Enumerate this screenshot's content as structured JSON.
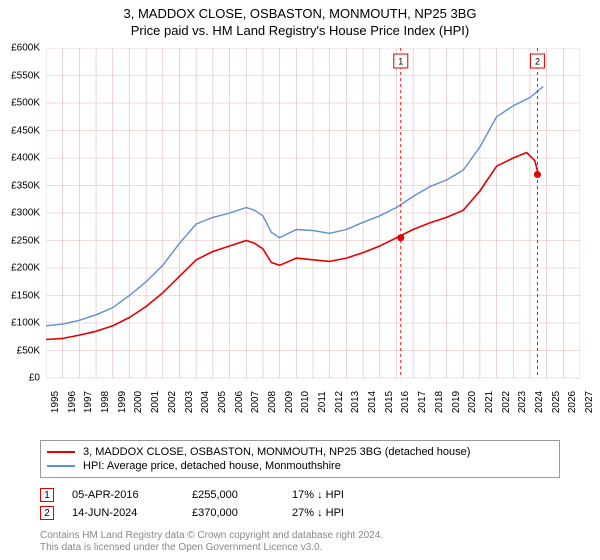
{
  "title": "3, MADDOX CLOSE, OSBASTON, MONMOUTH, NP25 3BG",
  "subtitle": "Price paid vs. HM Land Registry's House Price Index (HPI)",
  "chart": {
    "type": "line",
    "background_color": "#ffffff",
    "grid_color": "#e5b8b8",
    "grid_color_minor": "#f0dcdc",
    "title_fontsize": 13,
    "label_fontsize": 10,
    "x": {
      "min": 1995,
      "max": 2027,
      "ticks": [
        1995,
        1996,
        1997,
        1998,
        1999,
        2000,
        2001,
        2002,
        2003,
        2004,
        2005,
        2006,
        2007,
        2008,
        2009,
        2010,
        2011,
        2012,
        2013,
        2014,
        2015,
        2016,
        2017,
        2018,
        2019,
        2020,
        2021,
        2022,
        2023,
        2024,
        2025,
        2026,
        2027
      ]
    },
    "y": {
      "min": 0,
      "max": 600000,
      "tick_step": 50000,
      "tick_labels": [
        "£0",
        "£50K",
        "£100K",
        "£150K",
        "£200K",
        "£250K",
        "£300K",
        "£350K",
        "£400K",
        "£450K",
        "£500K",
        "£550K",
        "£600K"
      ]
    },
    "series": [
      {
        "id": "price_paid",
        "label": "3, MADDOX CLOSE, OSBASTON, MONMOUTH, NP25 3BG (detached house)",
        "color": "#e30000",
        "line_width": 1.6,
        "data": [
          [
            1995,
            70000
          ],
          [
            1996,
            72000
          ],
          [
            1997,
            78000
          ],
          [
            1998,
            85000
          ],
          [
            1999,
            95000
          ],
          [
            2000,
            110000
          ],
          [
            2001,
            130000
          ],
          [
            2002,
            155000
          ],
          [
            2003,
            185000
          ],
          [
            2004,
            215000
          ],
          [
            2005,
            230000
          ],
          [
            2006,
            240000
          ],
          [
            2007,
            250000
          ],
          [
            2007.5,
            245000
          ],
          [
            2008,
            235000
          ],
          [
            2008.5,
            210000
          ],
          [
            2009,
            205000
          ],
          [
            2010,
            218000
          ],
          [
            2011,
            215000
          ],
          [
            2012,
            212000
          ],
          [
            2013,
            218000
          ],
          [
            2014,
            228000
          ],
          [
            2015,
            240000
          ],
          [
            2016,
            255000
          ],
          [
            2017,
            270000
          ],
          [
            2018,
            282000
          ],
          [
            2019,
            292000
          ],
          [
            2020,
            305000
          ],
          [
            2021,
            340000
          ],
          [
            2022,
            385000
          ],
          [
            2023,
            400000
          ],
          [
            2023.8,
            410000
          ],
          [
            2024.3,
            395000
          ],
          [
            2024.5,
            370000
          ]
        ]
      },
      {
        "id": "hpi",
        "label": "HPI: Average price, detached house, Monmouthshire",
        "color": "#5b8fd6",
        "line_width": 1.4,
        "data": [
          [
            1995,
            95000
          ],
          [
            1996,
            98000
          ],
          [
            1997,
            105000
          ],
          [
            1998,
            115000
          ],
          [
            1999,
            128000
          ],
          [
            2000,
            150000
          ],
          [
            2001,
            175000
          ],
          [
            2002,
            205000
          ],
          [
            2003,
            245000
          ],
          [
            2004,
            280000
          ],
          [
            2005,
            292000
          ],
          [
            2006,
            300000
          ],
          [
            2007,
            310000
          ],
          [
            2007.5,
            305000
          ],
          [
            2008,
            295000
          ],
          [
            2008.5,
            265000
          ],
          [
            2009,
            255000
          ],
          [
            2010,
            270000
          ],
          [
            2011,
            268000
          ],
          [
            2012,
            263000
          ],
          [
            2013,
            270000
          ],
          [
            2014,
            283000
          ],
          [
            2015,
            295000
          ],
          [
            2016,
            310000
          ],
          [
            2017,
            330000
          ],
          [
            2018,
            348000
          ],
          [
            2019,
            360000
          ],
          [
            2020,
            378000
          ],
          [
            2021,
            420000
          ],
          [
            2022,
            475000
          ],
          [
            2023,
            495000
          ],
          [
            2024,
            510000
          ],
          [
            2024.8,
            530000
          ]
        ]
      }
    ],
    "markers": [
      {
        "n": "1",
        "x": 2016.26,
        "y": 255000,
        "color": "#e30000",
        "date": "05-APR-2016",
        "price": "£255,000",
        "pct": "17% ↓ HPI"
      },
      {
        "n": "2",
        "x": 2024.45,
        "y": 370000,
        "color": "#e30000",
        "date": "14-JUN-2024",
        "price": "£370,000",
        "pct": "27% ↓ HPI"
      }
    ]
  },
  "footnote_line1": "Contains HM Land Registry data © Crown copyright and database right 2024.",
  "footnote_line2": "This data is licensed under the Open Government Licence v3.0."
}
